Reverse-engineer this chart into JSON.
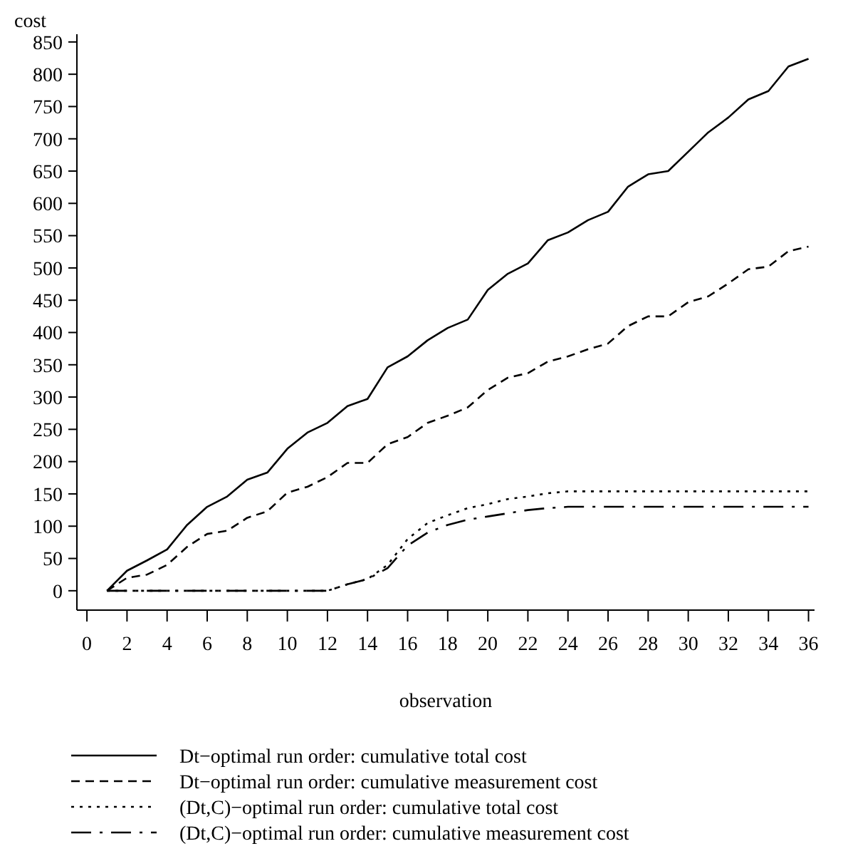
{
  "chart_data": {
    "type": "line",
    "xlabel": "observation",
    "ylabel": "cost",
    "xlim": [
      -0.5,
      36.3
    ],
    "ylim": [
      -30,
      862
    ],
    "xticks": [
      0,
      2,
      4,
      6,
      8,
      10,
      12,
      14,
      16,
      18,
      20,
      22,
      24,
      26,
      28,
      30,
      32,
      34,
      36
    ],
    "yticks": [
      0,
      50,
      100,
      150,
      200,
      250,
      300,
      350,
      400,
      450,
      500,
      550,
      600,
      650,
      700,
      750,
      800,
      850
    ],
    "x": [
      1,
      2,
      3,
      4,
      5,
      6,
      7,
      8,
      9,
      10,
      11,
      12,
      13,
      14,
      15,
      16,
      17,
      18,
      19,
      20,
      21,
      22,
      23,
      24,
      25,
      26,
      27,
      28,
      29,
      30,
      31,
      32,
      33,
      34,
      35,
      36
    ],
    "grid": false,
    "legend": "bottom",
    "marker": "none",
    "series": [
      {
        "name": "Dt−optimal run order: cumulative total cost",
        "color": "#000000",
        "line_style": "solid",
        "values": [
          0,
          31,
          47,
          64,
          102,
          130,
          146,
          172,
          183,
          220,
          245,
          260,
          286,
          297,
          346,
          363,
          388,
          407,
          420,
          466,
          491,
          507,
          543,
          555,
          574,
          587,
          626,
          645,
          650,
          680,
          710,
          733,
          761,
          774,
          812,
          824
        ]
      },
      {
        "name": "Dt−optimal run order: cumulative measurement cost",
        "color": "#000000",
        "line_style": "dashed",
        "values": [
          0,
          20,
          25,
          40,
          68,
          88,
          93,
          113,
          123,
          152,
          161,
          176,
          198,
          198,
          227,
          238,
          260,
          271,
          284,
          311,
          330,
          337,
          355,
          363,
          374,
          383,
          410,
          425,
          425,
          447,
          456,
          476,
          498,
          502,
          526,
          533
        ]
      },
      {
        "name": "(Dt,C)−optimal run order: cumulative total cost",
        "color": "#000000",
        "line_style": "dotted",
        "values": [
          0,
          0,
          0,
          0,
          0,
          0,
          0,
          0,
          0,
          0,
          0,
          0,
          10,
          18,
          40,
          80,
          105,
          117,
          128,
          134,
          142,
          146,
          151,
          154,
          154,
          154,
          154,
          154,
          154,
          154,
          154,
          154,
          154,
          154,
          154,
          154
        ]
      },
      {
        "name": "(Dt,C)−optimal run order: cumulative measurement cost",
        "color": "#000000",
        "line_style": "dashdot",
        "values": [
          0,
          0,
          0,
          0,
          0,
          0,
          0,
          0,
          0,
          0,
          0,
          0,
          10,
          18,
          35,
          70,
          90,
          102,
          110,
          115,
          120,
          125,
          128,
          130,
          130,
          130,
          130,
          130,
          130,
          130,
          130,
          130,
          130,
          130,
          130,
          130
        ]
      }
    ]
  }
}
